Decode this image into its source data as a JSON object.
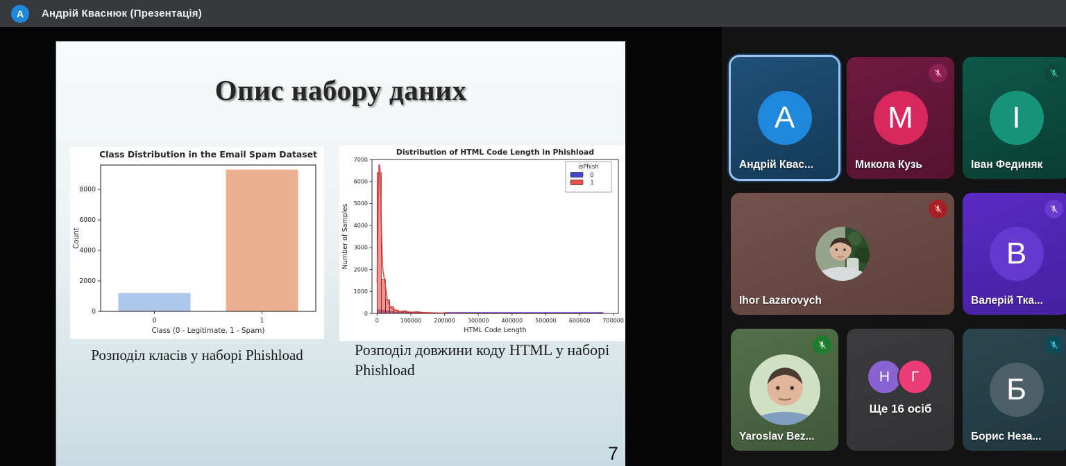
{
  "header": {
    "presenter_name": "Андрій Кваснюк (Презентація)",
    "avatar_letter": "A"
  },
  "slide": {
    "title": "Опис набору даних",
    "caption_left": "Розподіл класів у наборі Phishload",
    "caption_right": "Розподіл довжини коду HTML у наборі Phishload",
    "page_number": "7"
  },
  "chart_data": [
    {
      "type": "bar",
      "title": "Class Distribution in the Email Spam Dataset",
      "xlabel": "Class (0 - Legitimate, 1 - Spam)",
      "ylabel": "Count",
      "categories": [
        "0",
        "1"
      ],
      "values": [
        1200,
        9300
      ],
      "bar_colors": [
        "#aec6ea",
        "#eab090"
      ],
      "ylim": [
        0,
        9600
      ],
      "yticks": [
        0,
        2000,
        4000,
        6000,
        8000
      ],
      "grid": false
    },
    {
      "type": "histogram",
      "title": "Distribution of HTML Code Length in Phishload",
      "xlabel": "HTML Code Length",
      "ylabel": "Number of Samples",
      "legend_title": "isPhish",
      "legend_position": "upper right",
      "xlim": [
        -15000,
        715000
      ],
      "ylim": [
        0,
        7000
      ],
      "xticks": [
        0,
        100000,
        200000,
        300000,
        400000,
        500000,
        600000,
        700000
      ],
      "yticks": [
        0,
        1000,
        2000,
        3000,
        4000,
        5000,
        6000,
        7000
      ],
      "bin_start": 0,
      "bin_width": 12500,
      "series": [
        {
          "name": "0",
          "color": "#4545cd",
          "edge": "#1f1f90",
          "values": [
            165,
            145,
            118,
            100,
            68,
            52,
            42,
            36,
            30,
            28,
            25,
            22,
            20,
            18,
            16,
            14
          ],
          "baseline_to": 670000,
          "baseline_value": 60
        },
        {
          "name": "1",
          "color": "#e4524c",
          "edge": "#6e1412",
          "values": [
            6400,
            1550,
            620,
            300,
            150,
            90,
            120,
            60,
            45,
            80,
            55,
            30,
            25,
            20,
            15,
            10
          ]
        }
      ],
      "kde": {
        "color": "#d93a32",
        "points": [
          [
            500,
            1400
          ],
          [
            3000,
            5200
          ],
          [
            6000,
            6780
          ],
          [
            8500,
            6650
          ],
          [
            10500,
            5600
          ],
          [
            12500,
            4100
          ],
          [
            15000,
            2700
          ],
          [
            17500,
            1950
          ],
          [
            20500,
            1650
          ],
          [
            23000,
            1480
          ],
          [
            26000,
            1100
          ],
          [
            30000,
            650
          ],
          [
            35000,
            430
          ],
          [
            40000,
            300
          ],
          [
            47500,
            210
          ],
          [
            55000,
            150
          ],
          [
            65000,
            110
          ],
          [
            80000,
            80
          ],
          [
            100000,
            60
          ],
          [
            130000,
            45
          ],
          [
            170000,
            25
          ],
          [
            220000,
            12
          ],
          [
            300000,
            7
          ],
          [
            420000,
            4
          ],
          [
            550000,
            3
          ],
          [
            670000,
            2
          ]
        ]
      }
    }
  ],
  "colors": {
    "top_bar": "#38393d",
    "selected_ring": "#9cc3f2"
  },
  "participants": [
    {
      "name": "Андрій Квас...",
      "kind": "letter",
      "letter": "A",
      "tile_bg": [
        "#205078",
        "#143a57"
      ],
      "avatar_bg": "#1f88da",
      "selected": true,
      "muted": false,
      "span": 1
    },
    {
      "name": "Микола Кузь",
      "kind": "letter",
      "letter": "M",
      "tile_bg": [
        "#701b41",
        "#541231"
      ],
      "avatar_bg": "#d8295f",
      "muted": true,
      "mute_bg": "#8c2050",
      "mute_fg": "#f0a9c6",
      "span": 1
    },
    {
      "name": "Іван Фединяк",
      "kind": "letter",
      "letter": "I",
      "tile_bg": [
        "#0f5849",
        "#093d33"
      ],
      "avatar_bg": "#18947a",
      "muted": true,
      "mute_bg": "#0c4a3e",
      "mute_fg": "#35bd9b",
      "span": 1
    },
    {
      "name": "Ihor Lazarovych",
      "kind": "photo",
      "photo": "ihor",
      "tile_bg": [
        "#73524d",
        "#5e403b"
      ],
      "muted": true,
      "mute_bg": "#a81e25",
      "mute_fg": "#f2b5b0",
      "span": 2
    },
    {
      "name": "Валерій Тка...",
      "kind": "letter",
      "letter": "B",
      "tile_bg": [
        "#5a2ac3",
        "#45209f"
      ],
      "avatar_bg": "#6538cf",
      "muted": true,
      "mute_bg": "#6a3ad0",
      "mute_fg": "#d9c9f7",
      "span": 1
    },
    {
      "name": "Yaroslav Bez...",
      "kind": "photo",
      "photo": "yaroslav",
      "tile_bg": [
        "#53704a",
        "#41583a"
      ],
      "muted": true,
      "mute_bg": "#1d7c2e",
      "mute_fg": "#cfe9cf",
      "span": 1
    },
    {
      "name": "Ще 16 осіб",
      "kind": "group",
      "tile_bg": [
        "#3b3b3e",
        "#333336"
      ],
      "muted": false,
      "span": 1,
      "group_circles": [
        {
          "letter": "Н",
          "color": "#8a63d2"
        },
        {
          "letter": "Г",
          "color": "#ea3d78"
        }
      ]
    },
    {
      "name": "Борис Неза...",
      "kind": "letter",
      "letter": "Б",
      "tile_bg": [
        "#2b454e",
        "#203740"
      ],
      "avatar_bg": "#4d5e66",
      "muted": true,
      "mute_bg": "#0e4a54",
      "mute_fg": "#3fc0d4",
      "span": 1
    }
  ]
}
